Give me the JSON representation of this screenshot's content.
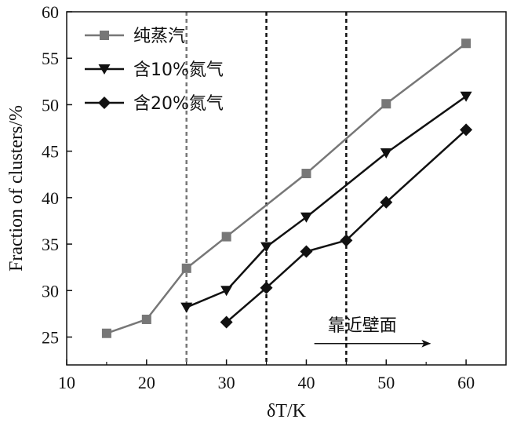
{
  "chart_data": {
    "type": "line",
    "xlabel": "δT/K",
    "ylabel": "Fraction of clusters/%",
    "xlim": [
      10,
      65
    ],
    "ylim": [
      22,
      60
    ],
    "xticks": [
      10,
      20,
      30,
      40,
      50,
      60
    ],
    "yticks": [
      25,
      30,
      35,
      40,
      45,
      50,
      55,
      60
    ],
    "legend_position": "top-left",
    "series": [
      {
        "name": "纯蒸汽",
        "color": "#777777",
        "marker": "square",
        "points": [
          [
            15,
            25.4
          ],
          [
            20,
            26.9
          ],
          [
            25,
            32.4
          ],
          [
            30,
            35.8
          ],
          [
            40,
            42.6
          ],
          [
            50,
            50.1
          ],
          [
            60,
            56.6
          ]
        ]
      },
      {
        "name": "含10%氮气",
        "color": "#111111",
        "marker": "triangle-down",
        "points": [
          [
            25,
            28.2
          ],
          [
            30,
            30.0
          ],
          [
            35,
            34.7
          ],
          [
            40,
            37.9
          ],
          [
            50,
            44.8
          ],
          [
            60,
            50.9
          ]
        ]
      },
      {
        "name": "含20%氮气",
        "color": "#111111",
        "marker": "diamond",
        "points": [
          [
            30,
            26.6
          ],
          [
            35,
            30.3
          ],
          [
            40,
            34.2
          ],
          [
            45,
            35.4
          ],
          [
            50,
            39.5
          ],
          [
            60,
            47.3
          ]
        ]
      }
    ],
    "reference_lines": [
      {
        "x": 25,
        "style": "dashed",
        "color": "#777777"
      },
      {
        "x": 35,
        "style": "dashed",
        "color": "#111111"
      },
      {
        "x": 45,
        "style": "dashed",
        "color": "#111111"
      }
    ],
    "annotation": {
      "text": "靠近壁面",
      "arrow_direction": "right",
      "arrow_from_x": 41,
      "arrow_to_x": 55.5,
      "arrow_y": 24.3,
      "text_x": 47,
      "text_y": 26.3
    }
  }
}
